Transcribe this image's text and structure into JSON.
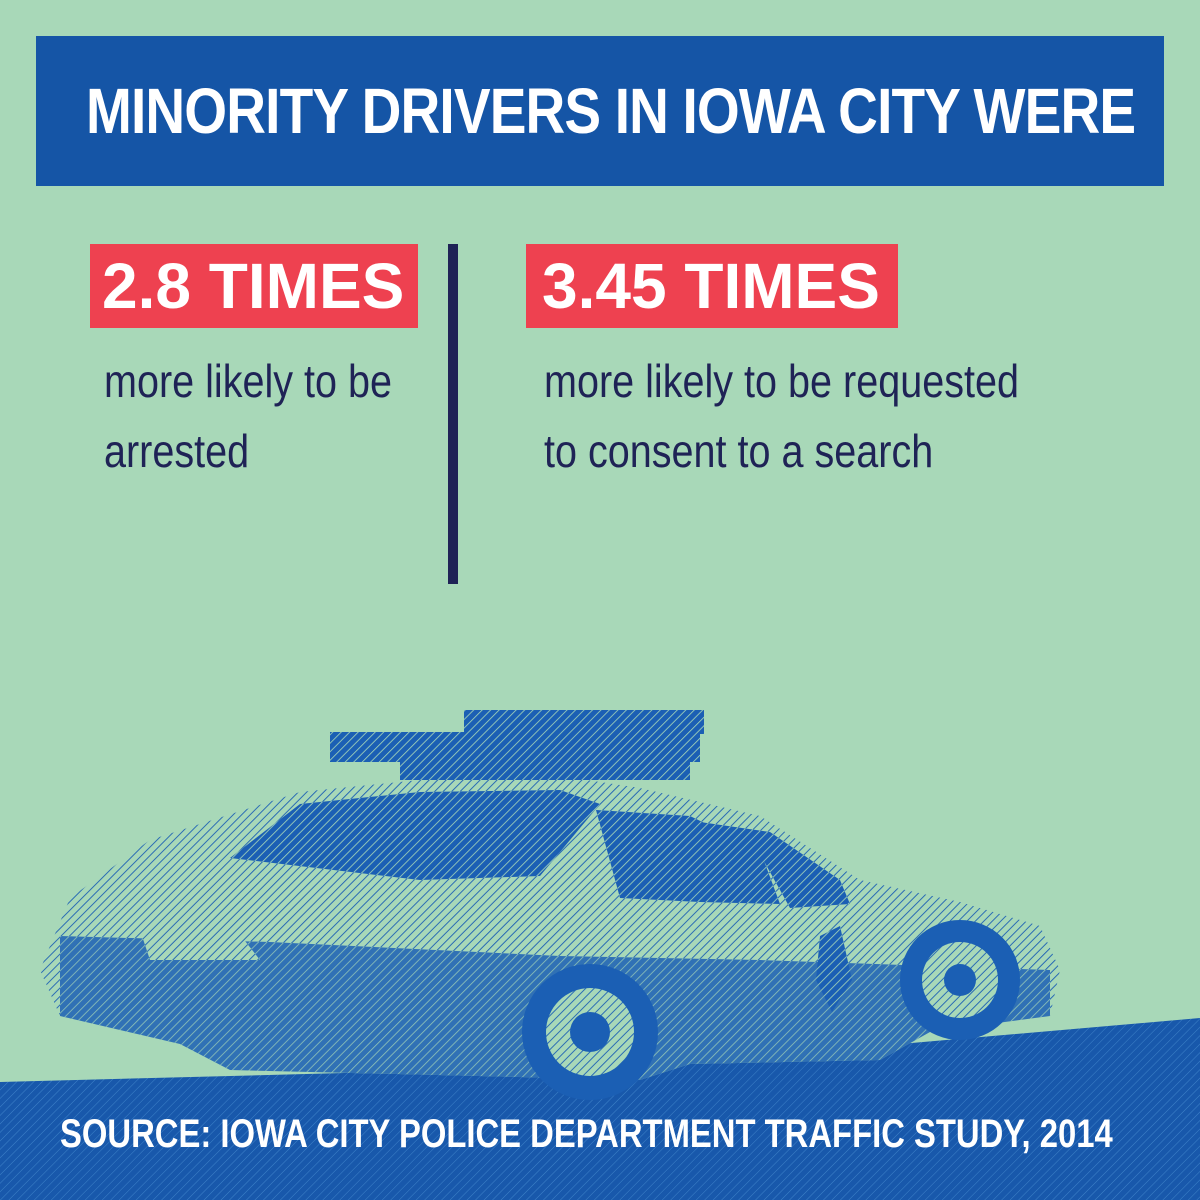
{
  "header": {
    "title": "MINORITY DRIVERS IN IOWA CITY WERE"
  },
  "stats": [
    {
      "value": "2.8 TIMES",
      "description": "more likely to be arrested"
    },
    {
      "value": "3.45 TIMES",
      "description": "more likely to be requested to consent to a search"
    }
  ],
  "illustration": {
    "icon": "police-car-icon"
  },
  "footer": {
    "source": "SOURCE: IOWA CITY POLICE DEPARTMENT TRAFFIC STUDY, 2014"
  },
  "colors": {
    "background": "#a8d8b8",
    "title_bar": "#1555a6",
    "highlight": "#ee4150",
    "text": "#1f2356",
    "car": "#1b5fb4"
  }
}
